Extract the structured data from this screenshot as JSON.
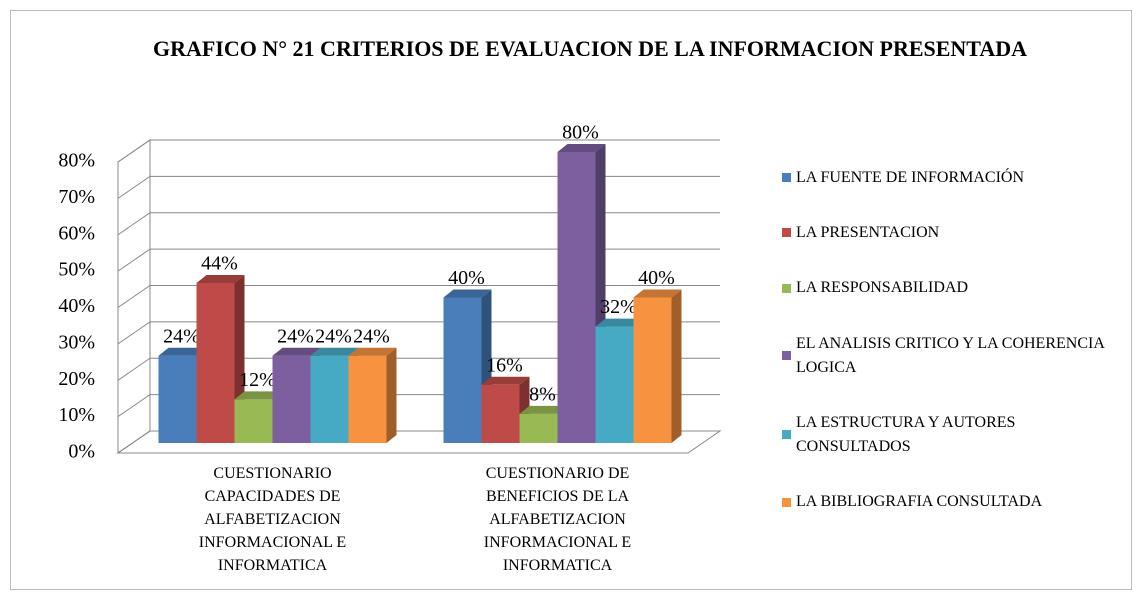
{
  "chart_data": {
    "type": "bar",
    "title": "GRAFICO N° 21  CRITERIOS DE EVALUACION DE LA INFORMACION PRESENTADA",
    "categories": [
      "CUESTIONARIO CAPACIDADES DE ALFABETIZACION INFORMACIONAL E INFORMATICA",
      "CUESTIONARIO DE BENEFICIOS DE LA ALFABETIZACION INFORMACIONAL E INFORMATICA"
    ],
    "series": [
      {
        "name": "LA FUENTE DE INFORMACIÓN",
        "color": "#4a7ebb",
        "values": [
          24,
          40
        ],
        "value_labels": [
          "24%",
          "40%"
        ]
      },
      {
        "name": "LA PRESENTACION",
        "color": "#be4b48",
        "values": [
          44,
          16
        ],
        "value_labels": [
          "44%",
          "16%"
        ]
      },
      {
        "name": "LA RESPONSABILIDAD",
        "color": "#98b954",
        "values": [
          12,
          8
        ],
        "value_labels": [
          "12%",
          "8%"
        ]
      },
      {
        "name": "EL ANALISIS CRITICO Y LA COHERENCIA LOGICA",
        "color": "#7d5fa0",
        "values": [
          24,
          80
        ],
        "value_labels": [
          "24%",
          "80%"
        ]
      },
      {
        "name": "LA ESTRUCTURA Y AUTORES CONSULTADOS",
        "color": "#46aac5",
        "values": [
          24,
          32
        ],
        "value_labels": [
          "24%",
          "32%"
        ]
      },
      {
        "name": "LA BIBLIOGRAFIA CONSULTADA",
        "color": "#f69240",
        "values": [
          24,
          40
        ],
        "value_labels": [
          "24%",
          "40%"
        ]
      }
    ],
    "ylim": [
      0,
      80
    ],
    "yticks": [
      {
        "value": 0,
        "label": "0%"
      },
      {
        "value": 10,
        "label": "10%"
      },
      {
        "value": 20,
        "label": "20%"
      },
      {
        "value": 30,
        "label": "30%"
      },
      {
        "value": 40,
        "label": "40%"
      },
      {
        "value": 50,
        "label": "50%"
      },
      {
        "value": 60,
        "label": "60%"
      },
      {
        "value": 70,
        "label": "70%"
      },
      {
        "value": 80,
        "label": "80%"
      }
    ],
    "grid": true,
    "legend": "right"
  }
}
